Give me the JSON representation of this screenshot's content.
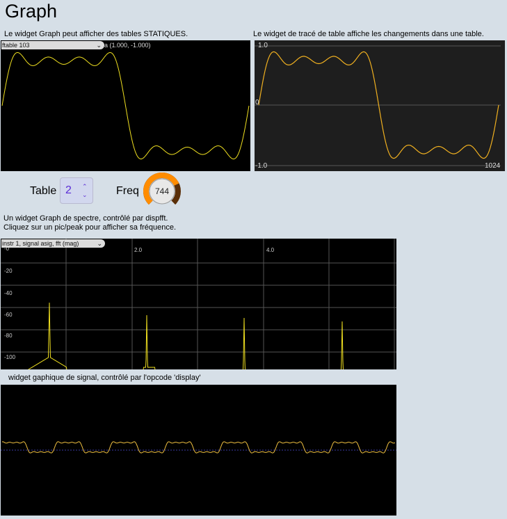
{
  "page": {
    "title": "Graph"
  },
  "static_graph": {
    "caption": "Le widget Graph peut afficher des tables STATIQUES.",
    "table_select": "ftable 103",
    "coord_readout": "a (1.000, -1.000)"
  },
  "table_plot": {
    "caption": "Le widget de tracé de table affiche les changements dans une table.",
    "y_top": "1.0",
    "y_mid": "0",
    "y_bottom": "-1.0",
    "x_end": "1024"
  },
  "controls": {
    "table_label": "Table",
    "table_value": "2",
    "freq_label": "Freq",
    "freq_value": "744",
    "freq_level": 0.74,
    "knob_color": "#ff8c00"
  },
  "spectrum": {
    "caption_line1": "Un widget Graph de spectre, contrôlé par dispfft.",
    "caption_line2": "Cliquez sur un pic/peak pour afficher sa fréquence.",
    "signal_select": "instr 1, signal asig, fft (mag)",
    "x_ticks": [
      "2.0",
      "4.0"
    ],
    "y_ticks": [
      "-0",
      "-20",
      "-40",
      "-60",
      "-80",
      "-100"
    ]
  },
  "scope": {
    "caption": "widget gaphique de signal, contrôlé par l'opcode 'display'"
  },
  "colors": {
    "trace": "#f0e020",
    "trace_orange": "#f0b020",
    "background": "#d6dfe7"
  }
}
